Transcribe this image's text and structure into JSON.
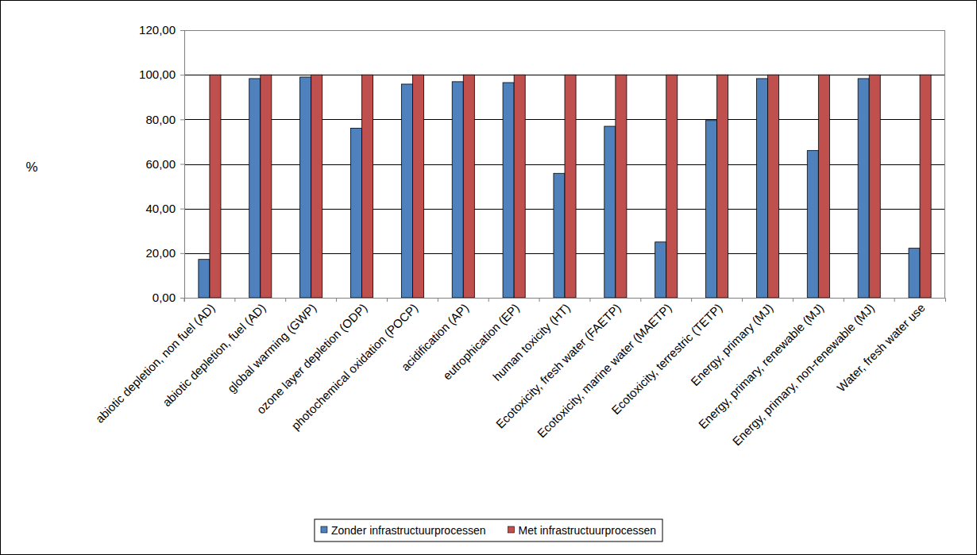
{
  "chart_data": {
    "type": "bar",
    "y_label": "%",
    "categories": [
      "abiotic depletion, non fuel (AD)",
      "abiotic depletion, fuel (AD)",
      "global warming (GWP)",
      "ozone layer depletion (ODP)",
      "photochemical oxidation (POCP)",
      "acidification (AP)",
      "eutrophication (EP)",
      "human toxicity (HT)",
      "Ecotoxicity, fresh water (FAETP)",
      "Ecotoxicity, marine water (MAETP)",
      "Ecotoxicity, terrestric (TETP)",
      "Energy, primary (MJ)",
      "Energy, primary, renewable (MJ)",
      "Energy, primary, non-renewable (MJ)",
      "Water, fresh water use"
    ],
    "series": [
      {
        "name": "Zonder infrastructuurprocessen",
        "color": "#4f81bd",
        "values": [
          17.2,
          98.3,
          99.0,
          76.0,
          95.8,
          96.9,
          96.5,
          55.8,
          76.9,
          25.0,
          79.5,
          98.3,
          66.0,
          98.3,
          22.2
        ]
      },
      {
        "name": "Met infrastructuurprocessen",
        "color": "#c0504d",
        "values": [
          100,
          100,
          100,
          100,
          100,
          100,
          100,
          100,
          100,
          100,
          100,
          100,
          100,
          100,
          100
        ]
      }
    ],
    "ylim": [
      0,
      120
    ],
    "yticks": [
      {
        "value": 0,
        "label": "0,00"
      },
      {
        "value": 20,
        "label": "20,00"
      },
      {
        "value": 40,
        "label": "40,00"
      },
      {
        "value": 60,
        "label": "60,00"
      },
      {
        "value": 80,
        "label": "80,00"
      },
      {
        "value": 100,
        "label": "100,00"
      },
      {
        "value": 120,
        "label": "120,00"
      }
    ],
    "grid": true,
    "legend": "bottom"
  }
}
